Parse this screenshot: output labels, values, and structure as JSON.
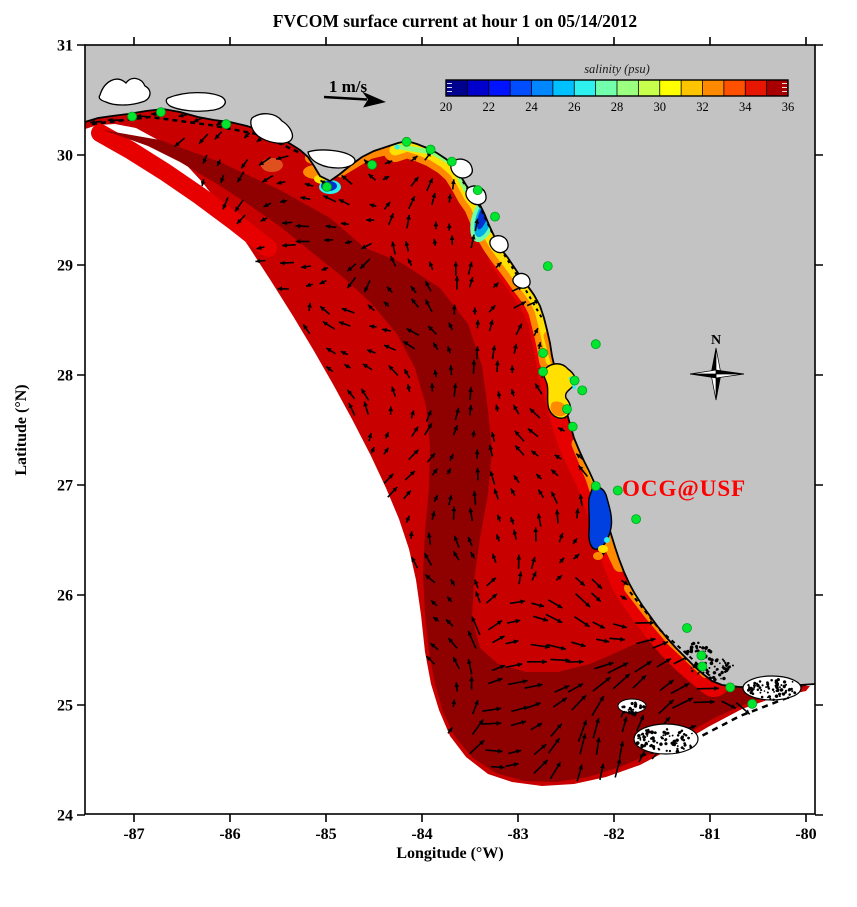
{
  "figure": {
    "title": "FVCOM surface current at hour 1 on 05/14/2012",
    "xlabel": "Longitude (°W)",
    "ylabel": "Latitude (°N)",
    "colorbar_title": "salinity (psu)",
    "scale_arrow_label": "1 m/s",
    "watermark": "OCG@USF",
    "compass_label": "N"
  },
  "chart_data": {
    "type": "heatmap",
    "title": "FVCOM surface current at hour 1 on 05/14/2012",
    "xlabel": "Longitude (°W)",
    "ylabel": "Latitude (°N)",
    "xlim": [
      -87.5,
      -79.9
    ],
    "ylim": [
      24,
      31
    ],
    "x_ticks": [
      -87,
      -86,
      -85,
      -84,
      -83,
      -82,
      -81,
      -80
    ],
    "x_tick_labels": [
      "-87",
      "-86",
      "-85",
      "-84",
      "-83",
      "-82",
      "-81",
      "-80"
    ],
    "y_ticks": [
      31,
      30,
      29,
      28,
      27,
      26,
      25,
      24
    ],
    "y_tick_labels": [
      "31",
      "30",
      "29",
      "28",
      "27",
      "26",
      "25",
      "24"
    ],
    "grid": false,
    "colorbar": {
      "label": "salinity (psu)",
      "range": [
        20,
        36
      ],
      "ticks": [
        20,
        22,
        24,
        26,
        28,
        30,
        32,
        34,
        36
      ],
      "tick_labels": [
        "20",
        "22",
        "24",
        "26",
        "28",
        "30",
        "32",
        "34",
        "36"
      ],
      "colors": [
        "#00008F",
        "#0000CD",
        "#0013FF",
        "#004DFF",
        "#0087FF",
        "#00C1FF",
        "#2EF0EE",
        "#71FFAB",
        "#9CFF80",
        "#C8FF4D",
        "#FFFF00",
        "#FFC400",
        "#FF8A00",
        "#FF5000",
        "#E61600",
        "#A80000"
      ]
    },
    "vector_key": {
      "label": "1 m/s",
      "speed_m_per_s": 1
    },
    "field_description": "Sea-surface salinity shading (mostly 35-36 psu dark red over the shelf; fresher 20-30 psu rainbow plumes hugging the Big Bend coast, Apalachicola Bay, Suwannee mouth, Tampa Bay and Charlotte Harbor) overlaid with black surface-current vectors; strongest arrows near the Florida Keys.",
    "annotations": [
      {
        "text": "OCG@USF",
        "color": "#FF0000",
        "lon_approx": -81.9,
        "lat_approx": 27.0
      },
      {
        "text": "N",
        "type": "compass-rose",
        "lon_approx": -80.9,
        "lat_approx": 28.0
      },
      {
        "text": "1 m/s",
        "type": "vector-scale-arrow",
        "lon_approx": -84.8,
        "lat_approx": 30.6
      }
    ],
    "stations": {
      "marker": "green-dot",
      "marker_color": "#00E62E",
      "points_lon_lat": [
        [
          -87.02,
          30.35
        ],
        [
          -86.72,
          30.39
        ],
        [
          -86.04,
          30.28
        ],
        [
          -84.99,
          29.71
        ],
        [
          -84.52,
          29.91
        ],
        [
          -84.16,
          30.12
        ],
        [
          -83.91,
          30.05
        ],
        [
          -83.69,
          29.94
        ],
        [
          -83.42,
          29.68
        ],
        [
          -83.24,
          29.44
        ],
        [
          -82.69,
          28.99
        ],
        [
          -82.19,
          28.28
        ],
        [
          -82.74,
          28.2
        ],
        [
          -82.74,
          28.03
        ],
        [
          -82.41,
          27.95
        ],
        [
          -82.33,
          27.86
        ],
        [
          -82.49,
          27.69
        ],
        [
          -82.43,
          27.53
        ],
        [
          -82.19,
          26.99
        ],
        [
          -81.96,
          26.95
        ],
        [
          -81.77,
          26.69
        ],
        [
          -81.24,
          25.7
        ],
        [
          -81.09,
          25.45
        ],
        [
          -81.08,
          25.35
        ],
        [
          -80.79,
          25.16
        ],
        [
          -80.56,
          25.01
        ]
      ]
    },
    "land_color": "#C3C3C3",
    "ocean_outside_domain_color": "#FFFFFF"
  }
}
